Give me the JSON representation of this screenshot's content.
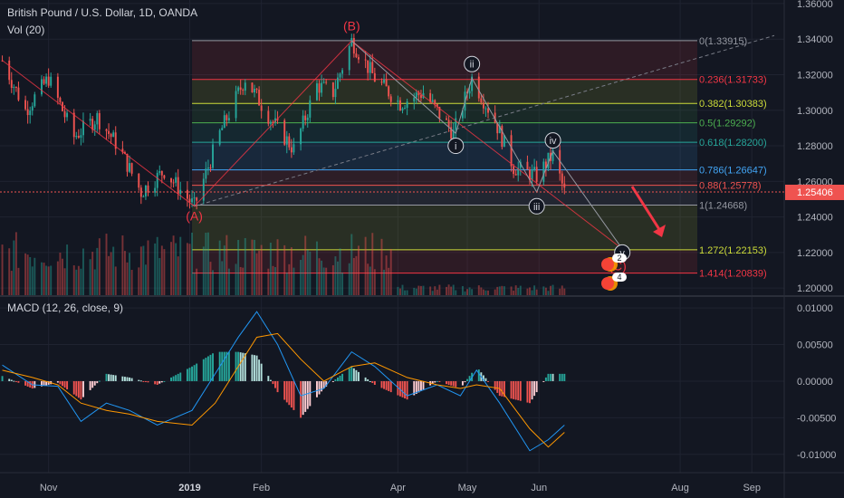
{
  "header": {
    "symbol": "British Pound / U.S. Dollar, 1D, OANDA",
    "volume": "Vol (20)",
    "macd": "MACD (12, 26, close, 9)"
  },
  "colors": {
    "bg": "#131722",
    "grid": "#1f2330",
    "text": "#b2b5be",
    "up": "#26a69a",
    "down": "#ef5350",
    "wave": "#f23645",
    "macd_line": "#2196f3",
    "signal_line": "#ff9800",
    "price_badge": "#ef5350"
  },
  "chart_data": [
    {
      "type": "candlestick",
      "title": "British Pound / U.S. Dollar, 1D, OANDA",
      "y_ticks": [
        "1.36000",
        "1.34000",
        "1.32000",
        "1.30000",
        "1.28000",
        "1.26000",
        "1.24000",
        "1.22000",
        "1.20000"
      ],
      "ylim": [
        1.196,
        1.362
      ],
      "x_ticks": [
        "Nov",
        "2019",
        "Feb",
        "Apr",
        "May",
        "Jun",
        "Aug",
        "Sep"
      ],
      "last_price": "1.25406",
      "last_price_value": 1.25406,
      "price_path": [
        [
          "2018-10-12",
          1.328
        ],
        [
          "2018-10-22",
          1.3
        ],
        [
          "2018-11-01",
          1.318
        ],
        [
          "2018-11-12",
          1.285
        ],
        [
          "2018-11-22",
          1.296
        ],
        [
          "2018-12-01",
          1.28
        ],
        [
          "2018-12-11",
          1.254
        ],
        [
          "2018-12-21",
          1.266
        ],
        [
          "2019-01-03",
          1.246
        ],
        [
          "2019-01-14",
          1.287
        ],
        [
          "2019-01-25",
          1.318
        ],
        [
          "2019-02-05",
          1.295
        ],
        [
          "2019-02-15",
          1.278
        ],
        [
          "2019-02-25",
          1.314
        ],
        [
          "2019-03-04",
          1.31
        ],
        [
          "2019-03-12",
          1.339
        ],
        [
          "2019-03-22",
          1.318
        ],
        [
          "2019-04-02",
          1.304
        ],
        [
          "2019-04-12",
          1.31
        ],
        [
          "2019-04-25",
          1.287
        ],
        [
          "2019-05-03",
          1.318
        ],
        [
          "2019-05-13",
          1.294
        ],
        [
          "2019-05-21",
          1.268
        ],
        [
          "2019-05-31",
          1.263
        ],
        [
          "2019-06-07",
          1.275
        ],
        [
          "2019-06-12",
          1.254
        ]
      ],
      "fibonacci": [
        {
          "ratio": "0",
          "value": "1.33915",
          "price": 1.33915,
          "color": "#9598a1"
        },
        {
          "ratio": "0.236",
          "value": "1.31733",
          "price": 1.31733,
          "color": "#f23645"
        },
        {
          "ratio": "0.382",
          "value": "1.30383",
          "price": 1.30383,
          "color": "#cddc39"
        },
        {
          "ratio": "0.5",
          "value": "1.29292",
          "price": 1.29292,
          "color": "#4caf50"
        },
        {
          "ratio": "0.618",
          "value": "1.28200",
          "price": 1.282,
          "color": "#26a69a"
        },
        {
          "ratio": "0.786",
          "value": "1.26647",
          "price": 1.26647,
          "color": "#42a5f5"
        },
        {
          "ratio": "0.88",
          "value": "1.25778",
          "price": 1.25778,
          "color": "#ef5350"
        },
        {
          "ratio": "1",
          "value": "1.24668",
          "price": 1.24668,
          "color": "#9598a1"
        },
        {
          "ratio": "1.272",
          "value": "1.22153",
          "price": 1.22153,
          "color": "#cddc39"
        },
        {
          "ratio": "1.414",
          "value": "1.20839",
          "price": 1.20839,
          "color": "#f23645"
        }
      ],
      "wave_labels": [
        {
          "label": "(A)",
          "date": "2019-01-03",
          "price": 1.238,
          "color": "#f23645"
        },
        {
          "label": "(B)",
          "date": "2019-03-12",
          "price": 1.345,
          "color": "#f23645"
        },
        {
          "label": "(C)",
          "date": "2019-07-05",
          "price": 1.21,
          "color": "#f23645"
        },
        {
          "label": "i",
          "date": "2019-04-26",
          "price": 1.28,
          "color": "#d1d4dc"
        },
        {
          "label": "ii",
          "date": "2019-05-03",
          "price": 1.326,
          "color": "#d1d4dc"
        },
        {
          "label": "iii",
          "date": "2019-05-31",
          "price": 1.246,
          "color": "#d1d4dc"
        },
        {
          "label": "iv",
          "date": "2019-06-07",
          "price": 1.283,
          "color": "#d1d4dc"
        },
        {
          "label": "v",
          "date": "2019-07-07",
          "price": 1.22,
          "color": "#d1d4dc"
        }
      ],
      "event_badges": [
        "2",
        "4"
      ]
    },
    {
      "type": "bar",
      "title": "Vol (20)",
      "note": "volume histogram overlaid on the lower part of the price pane"
    },
    {
      "type": "line",
      "title": "MACD (12, 26, close, 9)",
      "y_ticks": [
        "0.01000",
        "0.00500",
        "0.00000",
        "-0.00500",
        "-0.01000"
      ],
      "ylim": [
        -0.0125,
        0.0115
      ],
      "series": [
        {
          "name": "MACD",
          "points": [
            [
              "2018-10-12",
              0.0022
            ],
            [
              "2018-10-25",
              -0.0005
            ],
            [
              "2018-11-05",
              -0.0007
            ],
            [
              "2018-11-15",
              -0.0055
            ],
            [
              "2018-11-26",
              -0.003
            ],
            [
              "2018-12-06",
              -0.004
            ],
            [
              "2018-12-18",
              -0.006
            ],
            [
              "2019-01-02",
              -0.004
            ],
            [
              "2019-01-12",
              0.001
            ],
            [
              "2019-01-22",
              0.006
            ],
            [
              "2019-01-30",
              0.0095
            ],
            [
              "2019-02-08",
              0.005
            ],
            [
              "2019-02-18",
              -0.002
            ],
            [
              "2019-02-28",
              -0.001
            ],
            [
              "2019-03-12",
              0.004
            ],
            [
              "2019-03-22",
              0.002
            ],
            [
              "2019-04-05",
              -0.002
            ],
            [
              "2019-04-18",
              -0.0005
            ],
            [
              "2019-04-28",
              -0.002
            ],
            [
              "2019-05-05",
              0.0015
            ],
            [
              "2019-05-15",
              -0.003
            ],
            [
              "2019-05-28",
              -0.0095
            ],
            [
              "2019-06-05",
              -0.008
            ],
            [
              "2019-06-12",
              -0.006
            ]
          ]
        },
        {
          "name": "Signal",
          "points": [
            [
              "2018-10-12",
              0.0015
            ],
            [
              "2018-10-25",
              0.0005
            ],
            [
              "2018-11-05",
              -0.0005
            ],
            [
              "2018-11-15",
              -0.003
            ],
            [
              "2018-11-26",
              -0.004
            ],
            [
              "2018-12-06",
              -0.0045
            ],
            [
              "2018-12-18",
              -0.0055
            ],
            [
              "2019-01-02",
              -0.006
            ],
            [
              "2019-01-12",
              -0.003
            ],
            [
              "2019-01-22",
              0.002
            ],
            [
              "2019-01-30",
              0.006
            ],
            [
              "2019-02-08",
              0.0065
            ],
            [
              "2019-02-18",
              0.003
            ],
            [
              "2019-02-28",
              0.0
            ],
            [
              "2019-03-12",
              0.002
            ],
            [
              "2019-03-22",
              0.0025
            ],
            [
              "2019-04-05",
              0.0005
            ],
            [
              "2019-04-18",
              -0.0005
            ],
            [
              "2019-04-28",
              -0.001
            ],
            [
              "2019-05-05",
              -0.0005
            ],
            [
              "2019-05-15",
              -0.001
            ],
            [
              "2019-05-28",
              -0.0065
            ],
            [
              "2019-06-05",
              -0.009
            ],
            [
              "2019-06-12",
              -0.007
            ]
          ]
        }
      ]
    }
  ]
}
